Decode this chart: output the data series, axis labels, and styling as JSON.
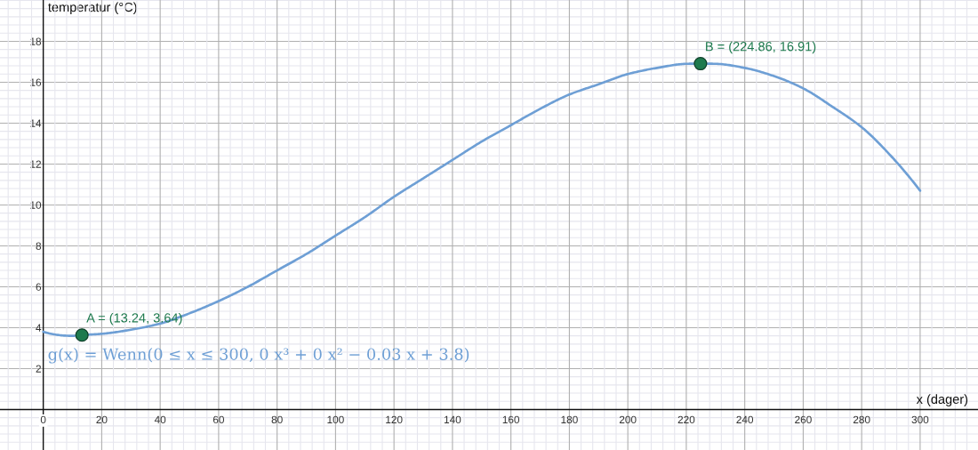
{
  "chart_data": {
    "type": "line",
    "xlabel": "x (dager)",
    "ylabel": "temperatur (°C)",
    "series": [
      {
        "name": "g(x) = Wenn(0 ≤ x ≤ 300, 0 x³ + 0 x² − 0.03 x + 3.8)",
        "color": "#6e9fd5",
        "x": [
          0,
          10,
          13.24,
          20,
          30,
          40,
          50,
          60,
          70,
          80,
          90,
          100,
          110,
          120,
          130,
          140,
          150,
          160,
          170,
          180,
          190,
          200,
          210,
          220,
          224.86,
          230,
          240,
          250,
          260,
          270,
          280,
          290,
          300
        ],
        "values": [
          3.8,
          3.6,
          3.64,
          3.7,
          3.9,
          4.2,
          4.7,
          5.3,
          6.0,
          6.8,
          7.6,
          8.5,
          9.4,
          10.4,
          11.3,
          12.2,
          13.1,
          13.9,
          14.7,
          15.4,
          15.9,
          16.4,
          16.7,
          16.9,
          16.91,
          16.9,
          16.7,
          16.3,
          15.7,
          14.8,
          13.8,
          12.4,
          10.7
        ]
      },
      {
        "type": "scatter",
        "color": "#1e7a4e",
        "x": [
          13.24,
          224.86
        ],
        "values": [
          3.64,
          16.91
        ],
        "value_labels": [
          "A = (13.24, 3.64)",
          "B = (224.86, 16.91)"
        ]
      }
    ],
    "xlim": [
      -14.8,
      319.8
    ],
    "ylim": [
      -1.98,
      20.02
    ],
    "xticks": [
      {
        "value": -12,
        "label": null
      },
      {
        "value": -8,
        "label": null
      },
      {
        "value": -4,
        "label": null
      },
      0,
      {
        "value": 4,
        "label": null
      },
      {
        "value": 8,
        "label": null
      },
      {
        "value": 12,
        "label": null
      },
      {
        "value": 16,
        "label": null
      },
      20,
      {
        "value": 24,
        "label": null
      },
      {
        "value": 28,
        "label": null
      },
      {
        "value": 32,
        "label": null
      },
      {
        "value": 36,
        "label": null
      },
      40,
      {
        "value": 44,
        "label": null
      },
      {
        "value": 48,
        "label": null
      },
      {
        "value": 52,
        "label": null
      },
      {
        "value": 56,
        "label": null
      },
      60,
      {
        "value": 64,
        "label": null
      },
      {
        "value": 68,
        "label": null
      },
      {
        "value": 72,
        "label": null
      },
      {
        "value": 76,
        "label": null
      },
      80,
      {
        "value": 84,
        "label": null
      },
      {
        "value": 88,
        "label": null
      },
      {
        "value": 92,
        "label": null
      },
      {
        "value": 96,
        "label": null
      },
      100,
      {
        "value": 104,
        "label": null
      },
      {
        "value": 108,
        "label": null
      },
      {
        "value": 112,
        "label": null
      },
      {
        "value": 116,
        "label": null
      },
      120,
      {
        "value": 124,
        "label": null
      },
      {
        "value": 128,
        "label": null
      },
      {
        "value": 132,
        "label": null
      },
      {
        "value": 136,
        "label": null
      },
      140,
      {
        "value": 144,
        "label": null
      },
      {
        "value": 148,
        "label": null
      },
      {
        "value": 152,
        "label": null
      },
      {
        "value": 156,
        "label": null
      },
      160,
      {
        "value": 164,
        "label": null
      },
      {
        "value": 168,
        "label": null
      },
      {
        "value": 172,
        "label": null
      },
      {
        "value": 176,
        "label": null
      },
      180,
      {
        "value": 184,
        "label": null
      },
      {
        "value": 188,
        "label": null
      },
      {
        "value": 192,
        "label": null
      },
      {
        "value": 196,
        "label": null
      },
      200,
      {
        "value": 204,
        "label": null
      },
      {
        "value": 208,
        "label": null
      },
      {
        "value": 212,
        "label": null
      },
      {
        "value": 216,
        "label": null
      },
      220,
      {
        "value": 224,
        "label": null
      },
      {
        "value": 228,
        "label": null
      },
      {
        "value": 232,
        "label": null
      },
      {
        "value": 236,
        "label": null
      },
      240,
      {
        "value": 244,
        "label": null
      },
      {
        "value": 248,
        "label": null
      },
      {
        "value": 252,
        "label": null
      },
      {
        "value": 256,
        "label": null
      },
      260,
      {
        "value": 264,
        "label": null
      },
      {
        "value": 268,
        "label": null
      },
      {
        "value": 272,
        "label": null
      },
      {
        "value": 276,
        "label": null
      },
      280,
      {
        "value": 284,
        "label": null
      },
      {
        "value": 288,
        "label": null
      },
      {
        "value": 292,
        "label": null
      },
      {
        "value": 296,
        "label": null
      },
      300,
      {
        "value": 304,
        "label": null
      },
      {
        "value": 308,
        "label": null
      },
      {
        "value": 312,
        "label": null
      },
      {
        "value": 316,
        "label": null
      }
    ],
    "yticks": [
      {
        "value": -1.6,
        "label": null
      },
      {
        "value": -1.2,
        "label": null
      },
      {
        "value": -0.8,
        "label": null
      },
      {
        "value": -0.4,
        "label": null
      },
      {
        "value": 0.4,
        "label": null
      },
      {
        "value": 0.8,
        "label": null
      },
      {
        "value": 1.2,
        "label": null
      },
      {
        "value": 1.6,
        "label": null
      },
      2,
      {
        "value": 2.4,
        "label": null
      },
      {
        "value": 2.8,
        "label": null
      },
      {
        "value": 3.2,
        "label": null
      },
      {
        "value": 3.6,
        "label": null
      },
      4,
      {
        "value": 4.4,
        "label": null
      },
      {
        "value": 4.8,
        "label": null
      },
      {
        "value": 5.2,
        "label": null
      },
      {
        "value": 5.6,
        "label": null
      },
      6,
      {
        "value": 6.4,
        "label": null
      },
      {
        "value": 6.8,
        "label": null
      },
      {
        "value": 7.2,
        "label": null
      },
      {
        "value": 7.6,
        "label": null
      },
      8,
      {
        "value": 8.4,
        "label": null
      },
      {
        "value": 8.8,
        "label": null
      },
      {
        "value": 9.2,
        "label": null
      },
      {
        "value": 9.6,
        "label": null
      },
      10,
      {
        "value": 10.4,
        "label": null
      },
      {
        "value": 10.8,
        "label": null
      },
      {
        "value": 11.2,
        "label": null
      },
      {
        "value": 11.6,
        "label": null
      },
      12,
      {
        "value": 12.4,
        "label": null
      },
      {
        "value": 12.8,
        "label": null
      },
      {
        "value": 13.2,
        "label": null
      },
      {
        "value": 13.6,
        "label": null
      },
      14,
      {
        "value": 14.4,
        "label": null
      },
      {
        "value": 14.8,
        "label": null
      },
      {
        "value": 15.2,
        "label": null
      },
      {
        "value": 15.6,
        "label": null
      },
      16,
      {
        "value": 16.4,
        "label": null
      },
      {
        "value": 16.8,
        "label": null
      },
      {
        "value": 17.2,
        "label": null
      },
      {
        "value": 17.6,
        "label": null
      },
      18,
      {
        "value": 18.4,
        "label": null
      },
      {
        "value": 18.8,
        "label": null
      },
      {
        "value": 19.2,
        "label": null
      },
      {
        "value": 19.6,
        "label": null
      },
      {
        "value": 20,
        "label": null
      }
    ],
    "grid": true
  }
}
